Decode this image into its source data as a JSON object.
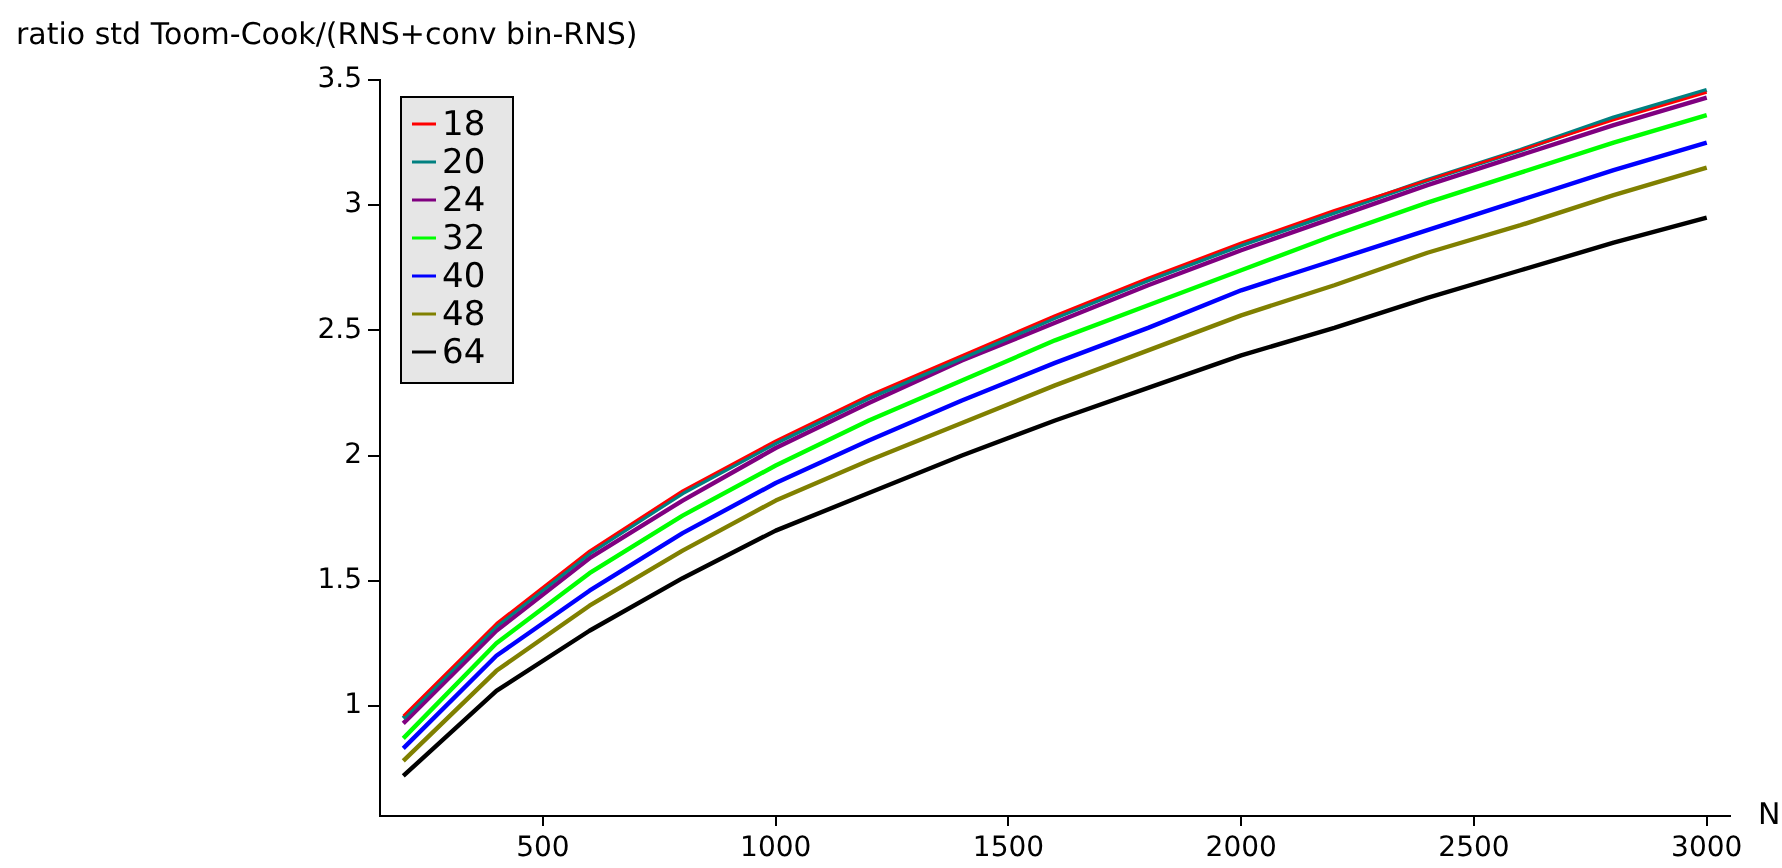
{
  "chart_data": {
    "type": "line",
    "ylabel": "ratio std Toom-Cook/(RNS+conv bin-RNS)",
    "xlabel": "N",
    "x": [
      200,
      400,
      600,
      800,
      1000,
      1200,
      1400,
      1600,
      1800,
      2000,
      2200,
      2400,
      2600,
      2800,
      3000
    ],
    "xlim": [
      150,
      3050
    ],
    "xticks": [
      500,
      1000,
      1500,
      2000,
      2500,
      3000
    ],
    "ylim": [
      0.56,
      3.5
    ],
    "yticks": [
      1,
      1.5,
      2,
      2.5,
      3,
      3.5
    ],
    "grid": false,
    "legend": "top left",
    "marker": "none",
    "line_style": "solid",
    "series": [
      {
        "name": "18",
        "color": "#ff0000",
        "values": [
          0.96,
          1.33,
          1.62,
          1.86,
          2.06,
          2.24,
          2.4,
          2.56,
          2.71,
          2.85,
          2.98,
          3.1,
          3.22,
          3.34,
          3.45
        ]
      },
      {
        "name": "20",
        "color": "#008080",
        "values": [
          0.95,
          1.32,
          1.61,
          1.85,
          2.05,
          2.23,
          2.39,
          2.55,
          2.7,
          2.84,
          2.97,
          3.1,
          3.22,
          3.35,
          3.46
        ]
      },
      {
        "name": "24",
        "color": "#800080",
        "values": [
          0.93,
          1.3,
          1.59,
          1.82,
          2.03,
          2.21,
          2.38,
          2.53,
          2.68,
          2.82,
          2.95,
          3.08,
          3.2,
          3.32,
          3.43
        ]
      },
      {
        "name": "32",
        "color": "#00ff00",
        "values": [
          0.87,
          1.25,
          1.53,
          1.76,
          1.96,
          2.14,
          2.3,
          2.46,
          2.6,
          2.74,
          2.88,
          3.01,
          3.13,
          3.25,
          3.36
        ]
      },
      {
        "name": "40",
        "color": "#0000ff",
        "values": [
          0.83,
          1.2,
          1.46,
          1.69,
          1.89,
          2.06,
          2.22,
          2.37,
          2.51,
          2.66,
          2.78,
          2.9,
          3.02,
          3.14,
          3.25
        ]
      },
      {
        "name": "48",
        "color": "#808000",
        "values": [
          0.78,
          1.14,
          1.4,
          1.62,
          1.82,
          1.98,
          2.13,
          2.28,
          2.42,
          2.56,
          2.68,
          2.81,
          2.92,
          3.04,
          3.15
        ]
      },
      {
        "name": "64",
        "color": "#000000",
        "values": [
          0.72,
          1.06,
          1.3,
          1.51,
          1.7,
          1.85,
          2.0,
          2.14,
          2.27,
          2.4,
          2.51,
          2.63,
          2.74,
          2.85,
          2.95
        ]
      }
    ]
  }
}
